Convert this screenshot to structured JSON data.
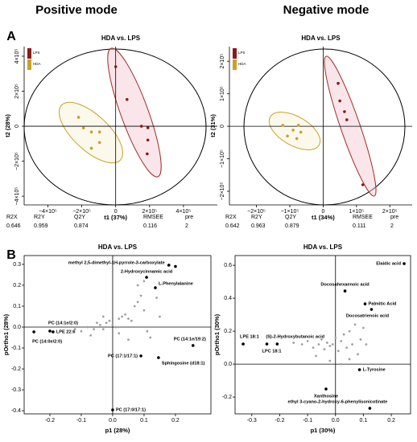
{
  "page": {
    "columns": [
      "Positive mode",
      "Negative mode"
    ],
    "panels": [
      "A",
      "B"
    ]
  },
  "chart_data": [
    {
      "type": "scatter",
      "title": "HDA vs. LPS",
      "xlabel": "t1 (37%)",
      "ylabel": "t2 (28%)",
      "xlim": [
        -540000,
        600000
      ],
      "ylim": [
        -450000,
        455000
      ],
      "xticks": [
        {
          "value": -400000,
          "label": "−4×10⁵"
        },
        {
          "value": -200000,
          "label": "−2×10⁵"
        },
        0,
        {
          "value": 200000,
          "label": "2×10⁵"
        },
        {
          "value": 400000,
          "label": "4×10⁵"
        }
      ],
      "yticks": [
        {
          "value": -400000,
          "label": "−4×10⁵"
        },
        {
          "value": -200000,
          "label": "−2×10⁵"
        },
        0,
        {
          "value": 200000,
          "label": "2×10⁵"
        },
        {
          "value": 400000,
          "label": "4×10⁵"
        }
      ],
      "legend": "top-left",
      "series": [
        {
          "name": "LPS",
          "color": "#8b1a1a",
          "x": [
            0,
            67000,
            152000,
            190000,
            190000,
            186000
          ],
          "values": [
            340000,
            153000,
            0,
            -9000,
            -79000,
            -158000
          ]
        },
        {
          "name": "HDA",
          "color": "#c9a227",
          "x": [
            -219000,
            -143000,
            -95000,
            -95000,
            -143000,
            -190000
          ],
          "values": [
            51000,
            -33000,
            -33000,
            -93000,
            -126000,
            -10000
          ]
        }
      ],
      "stats": {
        "headers": [
          "R2X",
          "R2Y",
          "Q2Y",
          "RMSEE",
          "pre"
        ],
        "values": [
          0.646,
          0.959,
          0.874,
          0.116,
          2
        ]
      }
    },
    {
      "type": "scatter",
      "title": "HDA vs. LPS",
      "xlabel": "t1 (34%)",
      "ylabel": "t2 (31%)",
      "xlim": [
        -281000,
        267000
      ],
      "ylim": [
        -242000,
        245000
      ],
      "xticks": [
        {
          "value": -200000,
          "label": "−2×10⁵"
        },
        {
          "value": -100000,
          "label": "−1×10⁵"
        },
        0,
        {
          "value": 100000,
          "label": "1×10⁵"
        },
        {
          "value": 200000,
          "label": "2×10⁵"
        }
      ],
      "yticks": [
        {
          "value": -200000,
          "label": "−2×10⁵"
        },
        {
          "value": -100000,
          "label": "−1×10⁵"
        },
        0,
        {
          "value": 100000,
          "label": "1×10⁵"
        },
        {
          "value": 200000,
          "label": "2×10⁵"
        }
      ],
      "legend": "top-left",
      "series": [
        {
          "name": "LPS",
          "color": "#8b1a1a",
          "x": [
            45000,
            50000,
            64000,
            71000,
            119000
          ],
          "values": [
            132000,
            78000,
            45000,
            20000,
            -180000
          ]
        },
        {
          "name": "HDA",
          "color": "#c9a227",
          "x": [
            -121000,
            -90000,
            -74000,
            -67000,
            -107000,
            -79000
          ],
          "values": [
            3000,
            -12000,
            3000,
            -18000,
            -30000,
            -38000
          ]
        }
      ],
      "stats": {
        "headers": [
          "R2X",
          "R2Y",
          "Q2Y",
          "RMSEE",
          "pre"
        ],
        "values": [
          0.642,
          0.963,
          0.879,
          0.111,
          2
        ]
      }
    },
    {
      "type": "splot",
      "title": "HDA vs. LPS",
      "xlabel": "p1 (28%)",
      "ylabel": "pOrtho1 (28%)",
      "xlim": [
        -0.282,
        0.313
      ],
      "ylim": [
        -0.415,
        0.342
      ],
      "xticks": [
        -0.2,
        -0.1,
        {
          "value": 0,
          "label": "0.0"
        },
        0.1,
        0.2
      ],
      "yticks": [
        -0.4,
        -0.3,
        -0.2,
        -0.1,
        {
          "value": 0,
          "label": "0.0"
        },
        0.1,
        0.2,
        0.3
      ],
      "series": [
        {
          "color": "#a0a0a0",
          "x": [
            -0.12,
            -0.1,
            -0.08,
            -0.06,
            -0.05,
            -0.04,
            -0.03,
            -0.02,
            -0.01,
            0,
            0.01,
            0.02,
            0.03,
            0.04,
            0.05,
            0.06,
            0.07,
            0.08,
            0.09,
            0.1,
            0.11,
            0.12,
            -0.07,
            -0.03,
            0.02,
            0.05,
            0.08,
            0.1,
            0.14,
            0.15
          ],
          "values": [
            -0.01,
            -0.02,
            0.0,
            -0.01,
            0.02,
            0.01,
            -0.01,
            0.02,
            0.03,
            0.01,
            0.0,
            0.04,
            0.05,
            0.06,
            0.04,
            0.03,
            0.1,
            0.12,
            0.15,
            0.08,
            -0.02,
            -0.05,
            -0.04,
            0.05,
            -0.03,
            -0.06,
            0.2,
            0.22,
            0.14,
            0.05
          ]
        },
        {
          "color": "#000000",
          "x": [
            0.179,
            0.2,
            0.108,
            0.136,
            -0.2,
            -0.19,
            -0.251,
            0.256,
            0.09,
            0.146,
            0.0
          ],
          "values": [
            0.296,
            0.29,
            0.238,
            0.188,
            -0.019,
            -0.023,
            -0.023,
            -0.088,
            -0.138,
            -0.146,
            -0.396
          ],
          "point_labels": [
            "methyl 2,5-dimethyl-1H-pyrrole-3-carboxylate",
            null,
            "2-Hydroxycinnamic acid",
            "L-Phenylalanine",
            "PC (14:1e/2:0)",
            "LPE 22:6",
            "PC (14:0e/2:0)",
            "PC (14:1e/19:2)",
            "PC (17:1/17:1)",
            "Sphingosine (d18:1)",
            "PC (17:0/17:1)"
          ]
        }
      ]
    },
    {
      "type": "splot",
      "title": "HDA vs. LPS",
      "xlabel": "p1 (30%)",
      "ylabel": "pOrtho1 (30%)",
      "xlim": [
        -0.36,
        0.269
      ],
      "ylim": [
        -0.302,
        0.659
      ],
      "xticks": [
        -0.3,
        -0.2,
        -0.1,
        {
          "value": 0,
          "label": "0.0"
        },
        0.1,
        0.2
      ],
      "yticks": [
        -0.2,
        {
          "value": 0,
          "label": "0.0"
        },
        0.2,
        0.4,
        0.6
      ],
      "series": [
        {
          "color": "#a0a0a0",
          "x": [
            -0.15,
            -0.12,
            -0.1,
            -0.08,
            -0.06,
            -0.05,
            -0.04,
            -0.03,
            -0.02,
            -0.01,
            0,
            0.01,
            0.02,
            0.03,
            0.04,
            0.05,
            0.06,
            0.07,
            0.08,
            0.09,
            0.1,
            -0.07,
            -0.02,
            0.02,
            0.05,
            0.11
          ],
          "values": [
            0.13,
            0.12,
            0.14,
            0.1,
            0.12,
            0.15,
            0.09,
            0.13,
            0.11,
            0.12,
            0.16,
            0.08,
            0.14,
            0.18,
            0.1,
            0.2,
            0.12,
            0.24,
            0.06,
            0.15,
            0.22,
            0.05,
            0.02,
            0.0,
            0.03,
            0.12
          ]
        },
        {
          "color": "#000000",
          "x": [
            0.246,
            0.034,
            0.106,
            0.129,
            -0.331,
            -0.246,
            -0.209,
            -0.034,
            0.086,
            0.123
          ],
          "values": [
            0.61,
            0.444,
            0.366,
            0.332,
            0.122,
            0.122,
            0.122,
            -0.151,
            -0.034,
            -0.268
          ],
          "point_labels": [
            "Elaidic acid",
            "Docosahexaenoic acid",
            "Palmitic Acid",
            "Docosatrienoic acid",
            "LPE 18:1",
            "LPC 18:1",
            "(S)-2-Hydroxybutanoic acid",
            "Xanthosine",
            "L-Tyrosine",
            "ethyl 3-cyano-2-hydroxy-6-phenylisonicotinate"
          ]
        }
      ]
    }
  ]
}
